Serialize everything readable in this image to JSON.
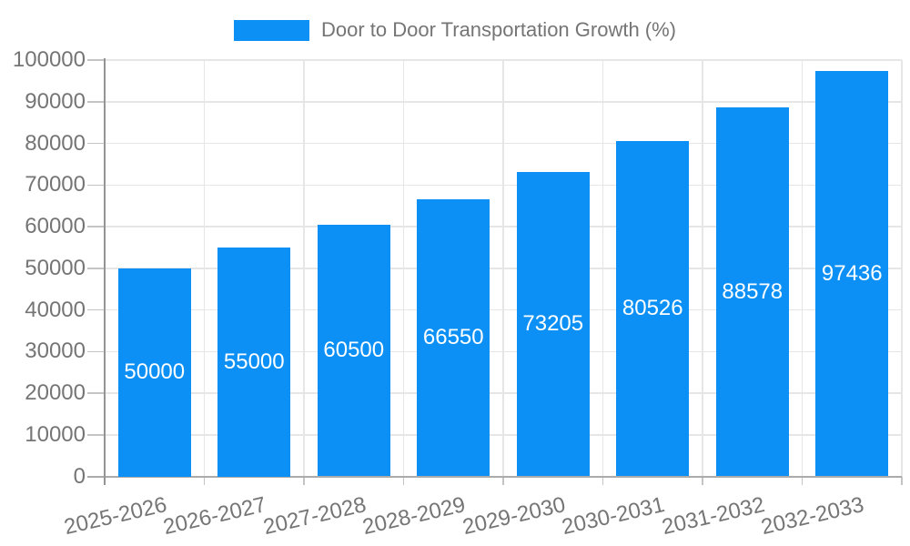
{
  "legend": {
    "label": "Door to Door Transportation Growth (%)"
  },
  "chart_data": {
    "type": "bar",
    "title": "Door to Door Transportation Growth (%)",
    "categories": [
      "2025-2026",
      "2026-2027",
      "2027-2028",
      "2028-2029",
      "2029-2030",
      "2030-2031",
      "2031-2032",
      "2032-2033"
    ],
    "series": [
      {
        "name": "Door to Door Transportation Growth (%)",
        "values": [
          50000,
          55000,
          60500,
          66550,
          73205,
          80526,
          88578,
          97436
        ]
      }
    ],
    "value_label_texts": [
      "50000",
      "55000",
      "60500",
      "66550",
      "73205",
      "80526",
      "88578",
      "97436"
    ],
    "xlabel": "",
    "ylabel": "",
    "ylim": [
      0,
      100000
    ],
    "ytick_step": 10000,
    "ytick_labels": [
      "0",
      "10000",
      "20000",
      "30000",
      "40000",
      "50000",
      "60000",
      "70000",
      "80000",
      "90000",
      "100000"
    ],
    "grid": true,
    "legend_position": "top",
    "value_label_position": "inside-center"
  },
  "colors": {
    "bar": "#0d90f5",
    "grid": "#e6e6e6",
    "axis_line": "#949494",
    "baseline": "#ababab",
    "tick": "#c4c4c4",
    "text": "#757575",
    "value_label": "#ffffff",
    "background": "#ffffff"
  }
}
